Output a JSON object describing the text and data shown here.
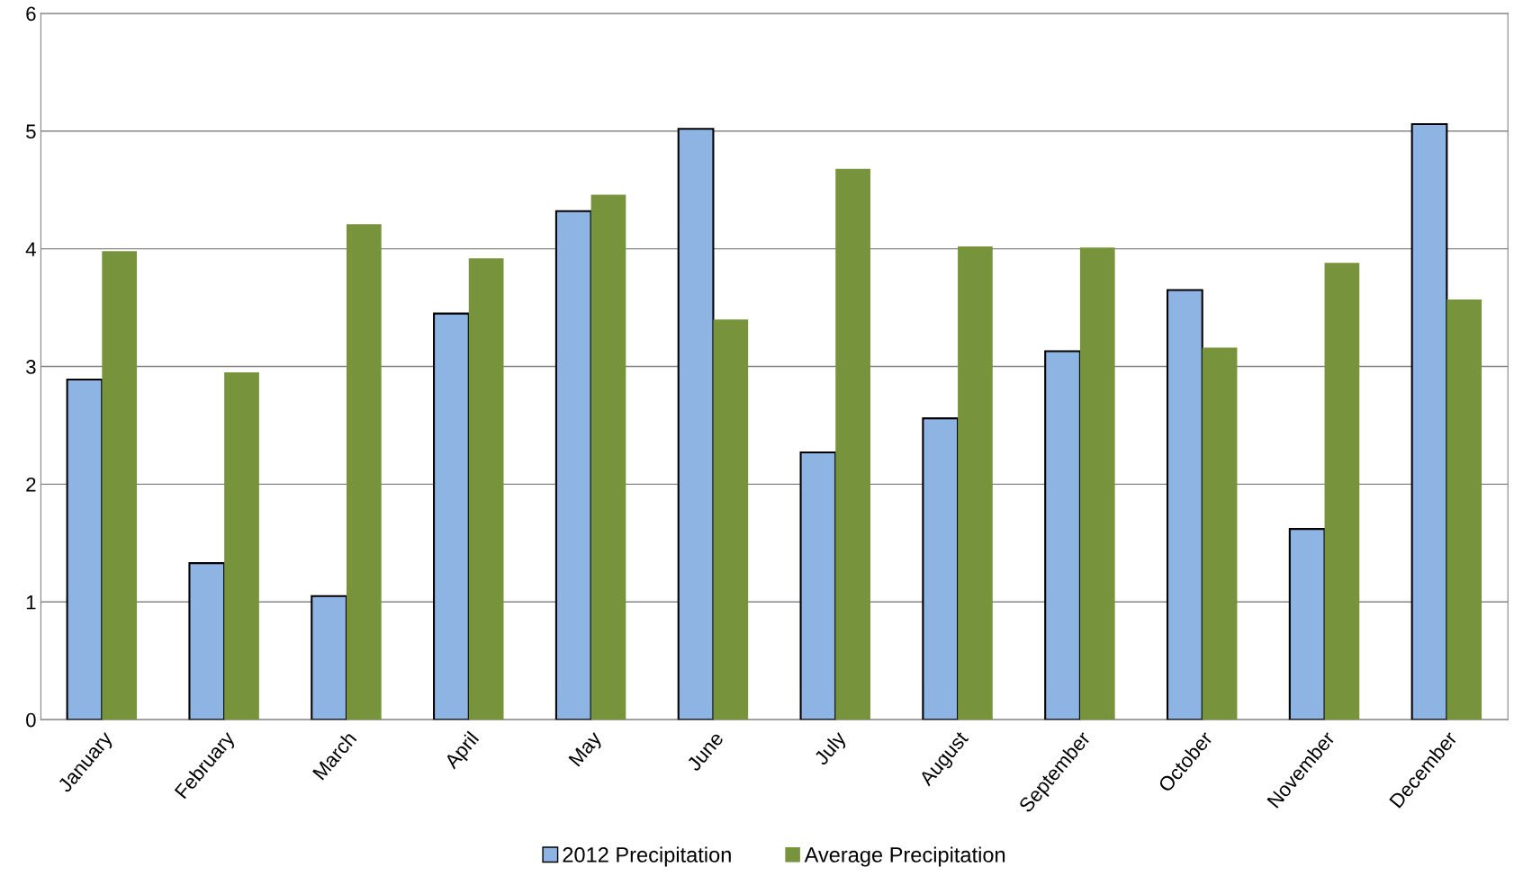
{
  "chart_data": {
    "type": "bar",
    "categories": [
      "January",
      "February",
      "March",
      "April",
      "May",
      "June",
      "July",
      "August",
      "September",
      "October",
      "November",
      "December"
    ],
    "series": [
      {
        "name": "2012 Precipitation",
        "color": "#8eb4e3",
        "values": [
          2.89,
          1.33,
          1.05,
          3.45,
          4.32,
          5.02,
          2.27,
          2.56,
          3.13,
          3.65,
          1.62,
          5.06
        ]
      },
      {
        "name": "Average Precipitation",
        "color": "#77933c",
        "values": [
          3.98,
          2.95,
          4.21,
          3.92,
          4.46,
          3.4,
          4.68,
          4.02,
          4.01,
          3.16,
          3.88,
          3.57
        ]
      }
    ],
    "ylim": [
      0,
      6
    ],
    "yticks": [
      0,
      1,
      2,
      3,
      4,
      5,
      6
    ],
    "grid": "y",
    "legend": "bottom"
  }
}
